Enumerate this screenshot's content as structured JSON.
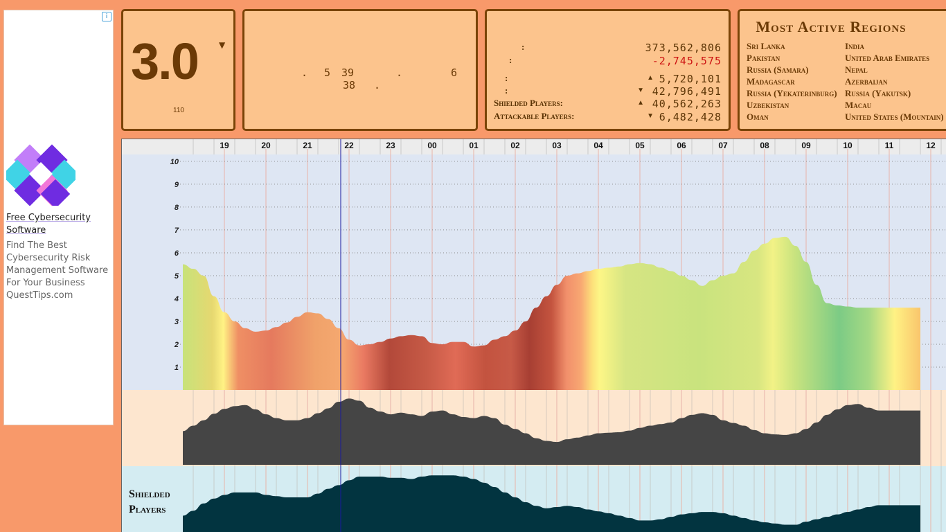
{
  "ad": {
    "info_icon": "info-icon",
    "title": "Free Cybersecurity Software",
    "text": "Find The Best Cybersecurity Risk Management Software For Your Business QuestTips.com",
    "logo_icon": "quest-logo-icon"
  },
  "score_panel": {
    "value": "3.0",
    "arrow": "▼",
    "sub": "110"
  },
  "time_panel": {
    "line1": [
      ".",
      "5",
      "39",
      ".",
      "6"
    ],
    "line2": [
      "38",
      "."
    ]
  },
  "stats": {
    "rows": [
      {
        "label": ":",
        "arrow": "",
        "value": "373,562,806",
        "color": "#5b3405"
      },
      {
        "label": ":",
        "arrow": "",
        "value": "-2,745,575",
        "color": "#cc1111"
      },
      {
        "label": ":",
        "arrow": "▲",
        "value": "5,720,101",
        "color": "#5b3405"
      },
      {
        "label": ":",
        "arrow": "▼",
        "value": "42,796,491",
        "color": "#5b3405"
      },
      {
        "label": "Shielded Players:",
        "arrow": "▲",
        "value": "40,562,263",
        "color": "#5b3405"
      },
      {
        "label": "Attackable Players:",
        "arrow": "▼",
        "value": "6,482,428",
        "color": "#5b3405"
      }
    ]
  },
  "regions": {
    "title": "Most Active Regions",
    "col1": [
      "Sri Lanka",
      "Pakistan",
      "Russia (Samara)",
      "Madagascar",
      "Russia (Yekaterinburg)",
      "Uzbekistan",
      "Oman"
    ],
    "col2": [
      "India",
      "United Arab Emirates",
      "Nepal",
      "Azerbaijan",
      "Russia (Yakutsk)",
      "Macau",
      "United States (Mountain)"
    ]
  },
  "chart_data": {
    "type": "area",
    "x_ticks": [
      "19",
      "20",
      "21",
      "22",
      "23",
      "00",
      "01",
      "02",
      "03",
      "04",
      "05",
      "06",
      "07",
      "08",
      "09",
      "10",
      "11",
      "12"
    ],
    "y_ticks": [
      1,
      2,
      3,
      4,
      5,
      6,
      7,
      8,
      9,
      10
    ],
    "ylim": [
      0,
      10.3
    ],
    "activity": {
      "x": [
        18.7,
        18.95,
        19.2,
        19.45,
        19.7,
        19.95,
        20.2,
        20.45,
        20.7,
        20.95,
        21.2,
        21.45,
        21.7,
        21.95,
        22.2,
        22.45,
        22.7,
        22.95,
        23.2,
        23.45,
        23.7,
        23.95,
        0.2,
        0.45,
        0.7,
        0.95,
        1.2,
        1.45,
        1.7,
        1.95,
        2.2,
        2.45,
        2.7,
        2.95,
        3.2,
        3.45,
        3.7,
        3.95,
        4.2,
        4.45,
        4.7,
        4.95,
        5.2,
        5.45,
        5.7,
        5.95,
        6.2,
        6.45,
        6.7,
        6.95,
        7.2,
        7.45,
        7.7,
        7.95,
        8.2,
        8.45,
        8.7,
        8.95,
        9.2,
        9.45,
        9.7,
        9.95,
        10.2,
        10.45,
        10.7,
        10.95,
        11.2,
        11.45,
        11.7,
        11.95,
        12.2,
        12.45
      ],
      "values": [
        5.5,
        5.3,
        5.0,
        4.1,
        3.4,
        3.0,
        2.7,
        2.55,
        2.6,
        2.75,
        2.95,
        3.2,
        3.4,
        3.35,
        3.1,
        2.7,
        2.2,
        1.95,
        2.0,
        2.1,
        2.25,
        2.35,
        2.4,
        2.35,
        2.05,
        2.0,
        2.1,
        2.1,
        1.9,
        1.95,
        2.2,
        2.35,
        2.6,
        3.0,
        3.6,
        4.1,
        4.6,
        5.0,
        5.1,
        5.2,
        5.3,
        5.35,
        5.4,
        5.5,
        5.55,
        5.5,
        5.35,
        5.2,
        5.0,
        4.8,
        4.55,
        4.8,
        5.0,
        5.1,
        5.6,
        6.1,
        6.4,
        6.65,
        6.7,
        6.3,
        5.6,
        4.6,
        3.8,
        3.7,
        3.65,
        3.6,
        3.6,
        3.6,
        3.6,
        3.6,
        3.6,
        3.6
      ]
    },
    "players": {
      "values": [
        0.62,
        0.72,
        0.82,
        0.94,
        1.03,
        1.08,
        1.1,
        1.02,
        0.93,
        0.86,
        0.82,
        0.82,
        0.86,
        0.95,
        1.04,
        1.16,
        1.22,
        1.18,
        1.05,
        0.98,
        0.93,
        0.96,
        0.93,
        0.9,
        0.98,
        1.0,
        0.93,
        0.88,
        0.86,
        0.9,
        0.86,
        0.74,
        0.66,
        0.58,
        0.49,
        0.44,
        0.42,
        0.47,
        0.5,
        0.54,
        0.58,
        0.59,
        0.6,
        0.63,
        0.68,
        0.72,
        0.75,
        0.78,
        0.86,
        0.92,
        0.95,
        0.92,
        0.82,
        0.77,
        0.72,
        0.64,
        0.58,
        0.56,
        0.55,
        0.58,
        0.66,
        0.78,
        0.92,
        1.02,
        1.1,
        1.12,
        1.05,
        1.0,
        1.0,
        1.0,
        1.0,
        1.0
      ]
    },
    "shielded": {
      "label": "Shielded Players",
      "values": [
        0.28,
        0.36,
        0.48,
        0.56,
        0.62,
        0.66,
        0.66,
        0.66,
        0.62,
        0.6,
        0.58,
        0.58,
        0.58,
        0.64,
        0.72,
        0.78,
        0.86,
        0.92,
        0.92,
        0.92,
        0.9,
        0.9,
        0.88,
        0.92,
        0.94,
        0.94,
        0.94,
        0.92,
        0.88,
        0.82,
        0.75,
        0.66,
        0.58,
        0.5,
        0.44,
        0.4,
        0.42,
        0.44,
        0.42,
        0.38,
        0.35,
        0.32,
        0.28,
        0.24,
        0.2,
        0.2,
        0.22,
        0.26,
        0.3,
        0.32,
        0.34,
        0.34,
        0.32,
        0.28,
        0.24,
        0.2,
        0.17,
        0.15,
        0.13,
        0.13,
        0.18,
        0.22,
        0.26,
        0.3,
        0.34,
        0.38,
        0.42,
        0.45,
        0.45,
        0.45,
        0.45,
        0.45
      ]
    },
    "current_time_hour": 22.0
  }
}
